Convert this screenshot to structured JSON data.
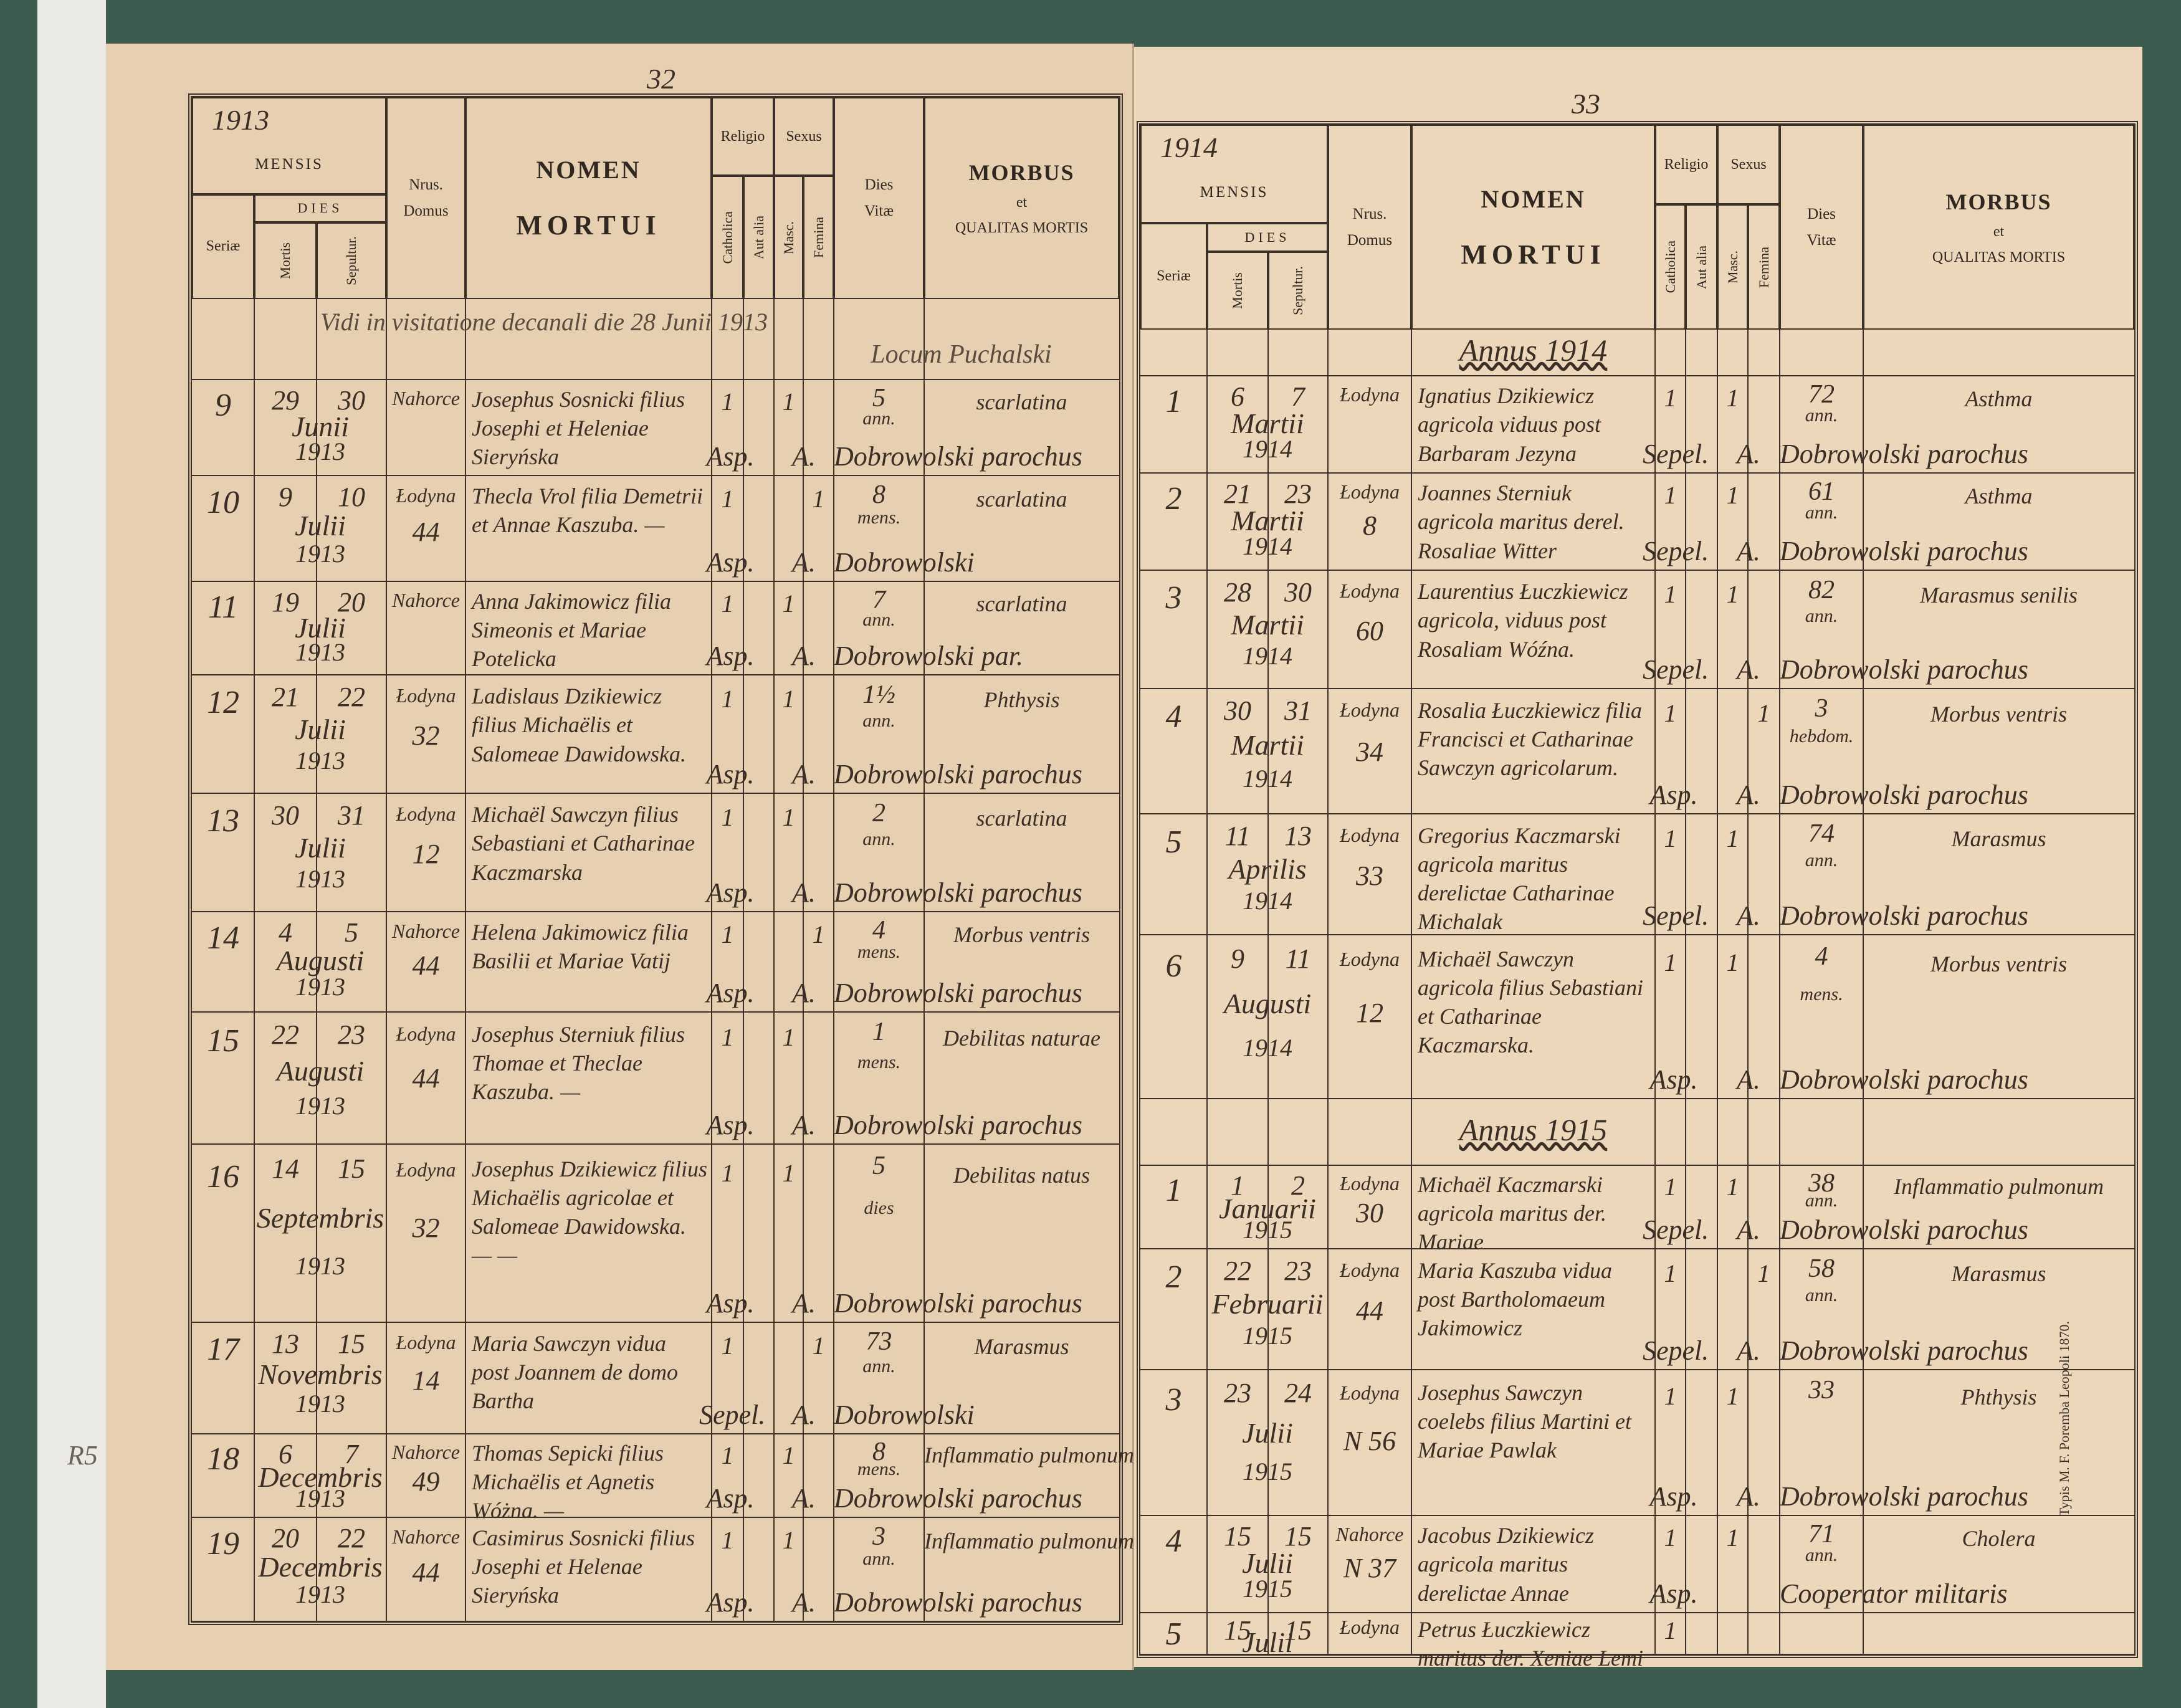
{
  "header": {
    "mensis": "MENSIS",
    "dies": "DIES",
    "seriae": "Seriæ",
    "mortis": "Mortis",
    "sepultur": "Sepultur.",
    "nrus": "Nrus.",
    "domus": "Domus",
    "nomen": "NOMEN",
    "mortui": "MORTUI",
    "religio": "Religio",
    "catholica": "Catholica",
    "aut_alia": "Aut alia",
    "sexus": "Sexus",
    "masc": "Masc.",
    "femina": "Femina",
    "dies_vitae": "Dies",
    "vitae": "Vitæ",
    "morbus": "MORBUS",
    "et": "et",
    "qualitas": "QUALITAS MORTIS"
  },
  "margin_note": "R5",
  "imprint": "Typis M. F. Poremba Leopoli 1870.",
  "pages": [
    {
      "page_number": "32",
      "year": "1913",
      "entries": [
        {
          "note": "Vidi in visitatione decanali die 28 Junii 1913",
          "signature": "Locum Puchalski"
        },
        {
          "seriae": "9",
          "mortis": "29",
          "sepultur": "30",
          "mensis": "Junii",
          "annus": "1913",
          "domus": "Nahorce",
          "nomen": "Josephus Sosnicki filius Josephi et Heleniae Sieryńska",
          "catholica": "1",
          "masc": "1",
          "vitae": "5",
          "vitae_unit": "ann.",
          "morbus": "scarlatina",
          "religio_mark": "Asp.",
          "sexus_mark": "A.",
          "priest": "Dobrowolski parochus"
        },
        {
          "seriae": "10",
          "mortis": "9",
          "sepultur": "10",
          "mensis": "Julii",
          "annus": "1913",
          "domus": "Łodyna",
          "nr": "44",
          "nomen": "Thecla Vrol filia Demetrii et Annae Kaszuba. —",
          "catholica": "1",
          "femina": "1",
          "vitae": "8",
          "vitae_unit": "mens.",
          "morbus": "scarlatina",
          "religio_mark": "Asp.",
          "sexus_mark": "A.",
          "priest": "Dobrowolski"
        },
        {
          "seriae": "11",
          "mortis": "19",
          "sepultur": "20",
          "mensis": "Julii",
          "annus": "1913",
          "domus": "Nahorce",
          "nomen": "Anna Jakimowicz filia Simeonis et Mariae Potelicka",
          "catholica": "1",
          "masc": "1",
          "vitae": "7",
          "vitae_unit": "ann.",
          "morbus": "scarlatina",
          "religio_mark": "Asp.",
          "sexus_mark": "A.",
          "priest": "Dobrowolski par."
        },
        {
          "seriae": "12",
          "mortis": "21",
          "sepultur": "22",
          "mensis": "Julii",
          "annus": "1913",
          "domus": "Łodyna",
          "nr": "32",
          "nomen": "Ladislaus Dzikiewicz filius Michaëlis et Salomeae Dawidowska.",
          "catholica": "1",
          "masc": "1",
          "vitae": "1½",
          "vitae_unit": "ann.",
          "morbus": "Phthysis",
          "religio_mark": "Asp.",
          "sexus_mark": "A.",
          "priest": "Dobrowolski parochus"
        },
        {
          "seriae": "13",
          "mortis": "30",
          "sepultur": "31",
          "mensis": "Julii",
          "annus": "1913",
          "domus": "Łodyna",
          "nr": "12",
          "nomen": "Michaël Sawczyn filius Sebastiani et Catharinae Kaczmarska",
          "catholica": "1",
          "masc": "1",
          "vitae": "2",
          "vitae_unit": "ann.",
          "morbus": "scarlatina",
          "religio_mark": "Asp.",
          "sexus_mark": "A.",
          "priest": "Dobrowolski parochus"
        },
        {
          "seriae": "14",
          "mortis": "4",
          "sepultur": "5",
          "mensis": "Augusti",
          "annus": "1913",
          "domus": "Nahorce",
          "nr": "44",
          "nomen": "Helena Jakimowicz filia Basilii et Mariae Vatij",
          "catholica": "1",
          "femina": "1",
          "vitae": "4",
          "vitae_unit": "mens.",
          "morbus": "Morbus ventris",
          "religio_mark": "Asp.",
          "sexus_mark": "A.",
          "priest": "Dobrowolski parochus"
        },
        {
          "seriae": "15",
          "mortis": "22",
          "sepultur": "23",
          "mensis": "Augusti",
          "annus": "1913",
          "domus": "Łodyna",
          "nr": "44",
          "nomen": "Josephus Sterniuk filius Thomae et Theclae Kaszuba. —",
          "catholica": "1",
          "masc": "1",
          "vitae": "1",
          "vitae_unit": "mens.",
          "morbus": "Debilitas naturae",
          "religio_mark": "Asp.",
          "sexus_mark": "A.",
          "priest": "Dobrowolski parochus"
        },
        {
          "seriae": "16",
          "mortis": "14",
          "sepultur": "15",
          "mensis": "Septembris",
          "annus": "1913",
          "domus": "Łodyna",
          "nr": "32",
          "nomen": "Josephus Dzikiewicz filius Michaëlis agricolae et Salomeae Dawidowska. — —",
          "catholica": "1",
          "masc": "1",
          "vitae": "5",
          "vitae_unit": "dies",
          "morbus": "Debilitas natus",
          "religio_mark": "Asp.",
          "sexus_mark": "A.",
          "priest": "Dobrowolski parochus"
        },
        {
          "seriae": "17",
          "mortis": "13",
          "sepultur": "15",
          "mensis": "Novembris",
          "annus": "1913",
          "domus": "Łodyna",
          "nr": "14",
          "nomen": "Maria Sawczyn vidua post Joannem de domo Bartha",
          "catholica": "1",
          "femina": "1",
          "vitae": "73",
          "vitae_unit": "ann.",
          "morbus": "Marasmus",
          "religio_mark": "Sepel.",
          "sexus_mark": "A.",
          "priest": "Dobrowolski"
        },
        {
          "seriae": "18",
          "mortis": "6",
          "sepultur": "7",
          "mensis": "Decembris",
          "annus": "1913",
          "domus": "Nahorce",
          "nr": "49",
          "nomen": "Thomas Sepicki filius Michaëlis et Agnetis Wóżna. —",
          "catholica": "1",
          "masc": "1",
          "vitae": "8",
          "vitae_unit": "mens.",
          "morbus": "Inflammatio pulmonum",
          "religio_mark": "Asp.",
          "sexus_mark": "A.",
          "priest": "Dobrowolski parochus"
        },
        {
          "seriae": "19",
          "mortis": "20",
          "sepultur": "22",
          "mensis": "Decembris",
          "annus": "1913",
          "domus": "Nahorce",
          "nr": "44",
          "nomen": "Casimirus Sosnicki filius Josephi et Helenae Sieryńska",
          "catholica": "1",
          "masc": "1",
          "vitae": "3",
          "vitae_unit": "ann.",
          "morbus": "Inflammatio pulmonum",
          "religio_mark": "Asp.",
          "sexus_mark": "A.",
          "priest": "Dobrowolski parochus"
        }
      ]
    },
    {
      "page_number": "33",
      "year": "1914",
      "entries": [
        {
          "note": "Annus 1914"
        },
        {
          "seriae": "1",
          "mortis": "6",
          "sepultur": "7",
          "mensis": "Martii",
          "annus": "1914",
          "domus": "Łodyna",
          "nomen": "Ignatius Dzikiewicz agricola viduus post Barbaram Jezyna",
          "catholica": "1",
          "masc": "1",
          "vitae": "72",
          "vitae_unit": "ann.",
          "morbus": "Asthma",
          "religio_mark": "Sepel.",
          "sexus_mark": "A.",
          "priest": "Dobrowolski parochus"
        },
        {
          "seriae": "2",
          "mortis": "21",
          "sepultur": "23",
          "mensis": "Martii",
          "annus": "1914",
          "domus": "Łodyna",
          "nr": "8",
          "nomen": "Joannes Sterniuk agricola maritus derel. Rosaliae Witter",
          "catholica": "1",
          "masc": "1",
          "vitae": "61",
          "vitae_unit": "ann.",
          "morbus": "Asthma",
          "religio_mark": "Sepel.",
          "sexus_mark": "A.",
          "priest": "Dobrowolski parochus"
        },
        {
          "seriae": "3",
          "mortis": "28",
          "sepultur": "30",
          "mensis": "Martii",
          "annus": "1914",
          "domus": "Łodyna",
          "nr": "60",
          "nomen": "Laurentius Łuczkiewicz agricola, viduus post Rosaliam Wóźna.",
          "catholica": "1",
          "masc": "1",
          "vitae": "82",
          "vitae_unit": "ann.",
          "morbus": "Marasmus senilis",
          "religio_mark": "Sepel.",
          "sexus_mark": "A.",
          "priest": "Dobrowolski parochus"
        },
        {
          "seriae": "4",
          "mortis": "30",
          "sepultur": "31",
          "mensis": "Martii",
          "annus": "1914",
          "domus": "Łodyna",
          "nr": "34",
          "nomen": "Rosalia Łuczkiewicz filia Francisci et Catharinae Sawczyn agricolarum.",
          "catholica": "1",
          "femina": "1",
          "vitae": "3",
          "vitae_unit": "hebdom.",
          "morbus": "Morbus ventris",
          "religio_mark": "Asp.",
          "sexus_mark": "A.",
          "priest": "Dobrowolski parochus"
        },
        {
          "seriae": "5",
          "mortis": "11",
          "sepultur": "13",
          "mensis": "Aprilis",
          "annus": "1914",
          "domus": "Łodyna",
          "nr": "33",
          "nomen": "Gregorius Kaczmarski agricola maritus derelictae Catharinae Michalak",
          "catholica": "1",
          "masc": "1",
          "vitae": "74",
          "vitae_unit": "ann.",
          "morbus": "Marasmus",
          "religio_mark": "Sepel.",
          "sexus_mark": "A.",
          "priest": "Dobrowolski parochus"
        },
        {
          "seriae": "6",
          "mortis": "9",
          "sepultur": "11",
          "mensis": "Augusti",
          "annus": "1914",
          "domus": "Łodyna",
          "nr": "12",
          "nomen": "Michaël Sawczyn agricola filius Sebastiani et Catharinae Kaczmarska.",
          "catholica": "1",
          "masc": "1",
          "vitae": "4",
          "vitae_unit": "mens.",
          "morbus": "Morbus ventris",
          "religio_mark": "Asp.",
          "sexus_mark": "A.",
          "priest": "Dobrowolski parochus"
        },
        {
          "note": "Annus 1915"
        },
        {
          "seriae": "1",
          "mortis": "1",
          "sepultur": "2",
          "mensis": "Januarii",
          "annus": "1915",
          "domus": "Łodyna",
          "nr": "30",
          "nomen": "Michaël Kaczmarski agricola maritus der. Mariae",
          "catholica": "1",
          "masc": "1",
          "vitae": "38",
          "vitae_unit": "ann.",
          "morbus": "Inflammatio pulmonum",
          "religio_mark": "Sepel.",
          "sexus_mark": "A.",
          "priest": "Dobrowolski parochus"
        },
        {
          "seriae": "2",
          "mortis": "22",
          "sepultur": "23",
          "mensis": "Februarii",
          "annus": "1915",
          "domus": "Łodyna",
          "nr": "44",
          "nomen": "Maria Kaszuba vidua post Bartholomaeum Jakimowicz",
          "catholica": "1",
          "femina": "1",
          "vitae": "58",
          "vitae_unit": "ann.",
          "morbus": "Marasmus",
          "religio_mark": "Sepel.",
          "sexus_mark": "A.",
          "priest": "Dobrowolski parochus"
        },
        {
          "seriae": "3",
          "mortis": "23",
          "sepultur": "24",
          "mensis": "Julii",
          "annus": "1915",
          "domus": "Łodyna",
          "nr": "N 56",
          "nomen": "Josephus Sawczyn coelebs filius Martini et Mariae Pawlak",
          "catholica": "1",
          "masc": "1",
          "vitae": "33",
          "morbus": "Phthysis",
          "religio_mark": "Asp.",
          "sexus_mark": "A.",
          "priest": "Dobrowolski parochus"
        },
        {
          "seriae": "4",
          "mortis": "15",
          "sepultur": "15",
          "mensis": "Julii",
          "annus": "1915",
          "domus": "Nahorce",
          "nr": "N 37",
          "nomen": "Jacobus Dzikiewicz agricola maritus derelictae Annae",
          "catholica": "1",
          "masc": "1",
          "vitae": "71",
          "vitae_unit": "ann.",
          "morbus": "Cholera",
          "religio_mark": "Asp.",
          "priest": "Cooperator militaris"
        },
        {
          "seriae": "5",
          "mortis": "15",
          "sepultur": "15",
          "mensis": "Julii",
          "domus": "Łodyna",
          "nomen": "Petrus Łuczkiewicz maritus der. Xeniae Lemi",
          "catholica": "1"
        }
      ]
    }
  ]
}
